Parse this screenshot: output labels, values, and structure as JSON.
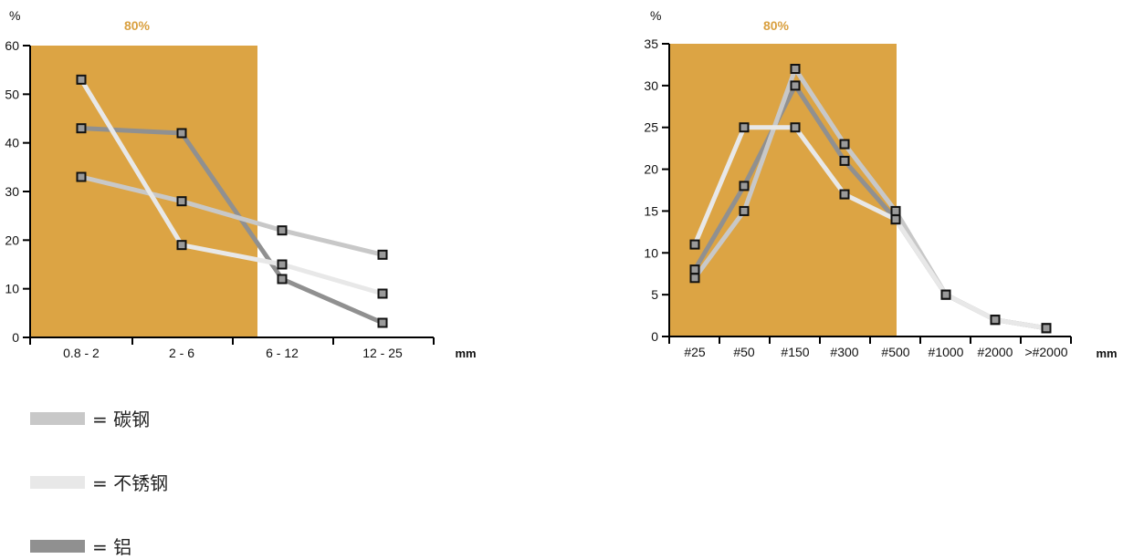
{
  "colors": {
    "zone": "#dca444",
    "zone_label": "#d9a040",
    "axis": "#000000",
    "marker_fill": "#9a9a9a",
    "marker_stroke": "#111111"
  },
  "legend": [
    {
      "swatch_color": "#c8c8c8",
      "label": "= 碳钢"
    },
    {
      "swatch_color": "#e8e8e8",
      "label": "= 不锈钢"
    },
    {
      "swatch_color": "#909090",
      "label": "= 铝"
    }
  ],
  "chart_data": [
    {
      "type": "line",
      "ylabel": "%",
      "xlabel": "mm",
      "zone_label": "80%",
      "zone_extent_categories": [
        "0.8 - 2",
        "2 - 6"
      ],
      "categories": [
        "0.8 - 2",
        "2 - 6",
        "6 - 12",
        "12 - 25"
      ],
      "ylim": [
        0,
        60
      ],
      "yticks": [
        0,
        10,
        20,
        30,
        40,
        50,
        60
      ],
      "series": [
        {
          "name": "碳钢",
          "color": "#c8c8c8",
          "values": [
            33,
            28,
            22,
            17
          ]
        },
        {
          "name": "不锈钢",
          "color": "#e8e8e8",
          "values": [
            53,
            19,
            15,
            9
          ]
        },
        {
          "name": "铝",
          "color": "#909090",
          "values": [
            43,
            42,
            12,
            3
          ]
        }
      ]
    },
    {
      "type": "line",
      "ylabel": "%",
      "xlabel": "mm",
      "zone_label": "80%",
      "zone_extent_categories": [
        "#25",
        "#500"
      ],
      "categories": [
        "#25",
        "#50",
        "#150",
        "#300",
        "#500",
        "#1000",
        "#2000",
        ">#2000"
      ],
      "ylim": [
        0,
        35
      ],
      "yticks": [
        0,
        5,
        10,
        15,
        20,
        25,
        30,
        35
      ],
      "series": [
        {
          "name": "碳钢",
          "color": "#c8c8c8",
          "values": [
            7,
            15,
            32,
            23,
            15,
            5,
            2,
            1
          ]
        },
        {
          "name": "不锈钢",
          "color": "#e8e8e8",
          "values": [
            11,
            25,
            25,
            17,
            14,
            5,
            2,
            1
          ]
        },
        {
          "name": "铝",
          "color": "#909090",
          "values": [
            8,
            18,
            30,
            21,
            14,
            5,
            2,
            1
          ]
        }
      ]
    }
  ]
}
